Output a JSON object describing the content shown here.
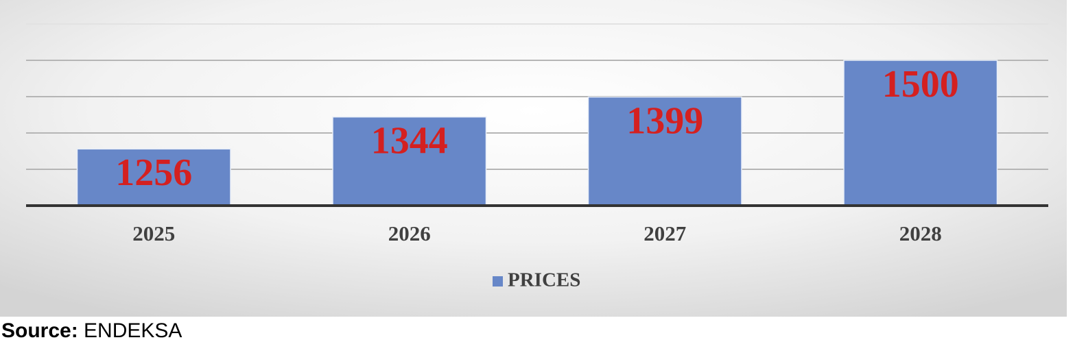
{
  "chart_data": {
    "type": "bar",
    "categories": [
      "2025",
      "2026",
      "2027",
      "2028"
    ],
    "series": [
      {
        "name": "PRICES",
        "color": "#6787c8",
        "values": [
          1256,
          1344,
          1399,
          1500
        ]
      }
    ],
    "ylim": [
      1100,
      1600
    ],
    "yticks": [
      1100,
      1200,
      1300,
      1400,
      1500,
      1600
    ],
    "grid": true,
    "legend": "bottom",
    "value_label_color": "#d42020"
  },
  "source_label": "Source:",
  "source": "ENDEKSA"
}
